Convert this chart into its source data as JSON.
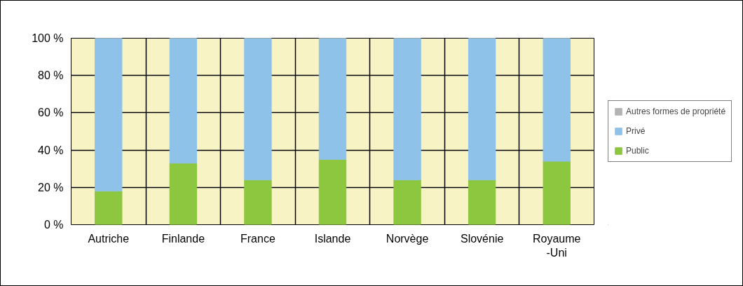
{
  "chart_data": {
    "type": "bar",
    "stacked": true,
    "categories": [
      "Autriche",
      "Finlande",
      "France",
      "Islande",
      "Norvège",
      "Slovénie",
      "Royaume-Uni"
    ],
    "series": [
      {
        "name": "Public",
        "color": "#8dc63f",
        "values": [
          18,
          33,
          24,
          35,
          24,
          24,
          34
        ]
      },
      {
        "name": "Privé",
        "color": "#8ec2e8",
        "values": [
          82,
          67,
          76,
          65,
          76,
          76,
          66
        ]
      },
      {
        "name": "Autres formes de propriété",
        "color": "#b3b3b3",
        "values": [
          0,
          0,
          0,
          0,
          0,
          0,
          0
        ]
      }
    ],
    "ylim": [
      0,
      100
    ],
    "yticks": [
      {
        "value": 0,
        "label": "0 %"
      },
      {
        "value": 20,
        "label": "20 %"
      },
      {
        "value": 40,
        "label": "40 %"
      },
      {
        "value": 60,
        "label": "60 %"
      },
      {
        "value": 80,
        "label": "80 %"
      },
      {
        "value": 100,
        "label": "100 %"
      }
    ],
    "grid": true,
    "legend": "right"
  }
}
